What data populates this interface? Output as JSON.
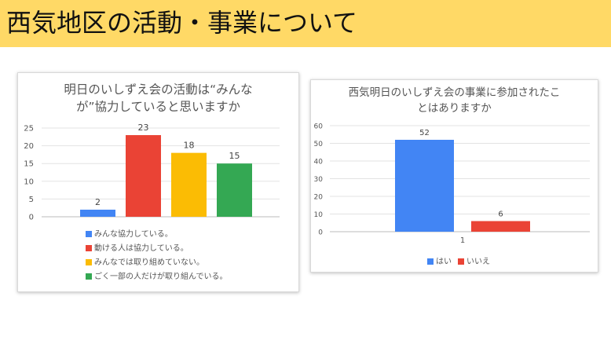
{
  "page": {
    "title": "西気地区の活動・事業について",
    "colors": {
      "banner": "#ffd966"
    }
  },
  "chart_data": [
    {
      "type": "bar",
      "title_line1": "明日のいしずえ会の活動は“みんな",
      "title_line2": "が”協力していると思いますか",
      "categories": [
        "みんな協力している。",
        "動ける人は協力している。",
        "みんなでは取り組めていない。",
        "ごく一部の人だけが取り組んでいる。"
      ],
      "values": [
        2,
        23,
        18,
        15
      ],
      "colors": [
        "#4285f4",
        "#ea4335",
        "#fbbc04",
        "#34a853"
      ],
      "ylim": [
        0,
        25
      ],
      "yticks": [
        "0",
        "5",
        "10",
        "15",
        "20",
        "25"
      ],
      "grid": true,
      "legend": "bottom"
    },
    {
      "type": "bar",
      "title_line1": "西気明日のいしずえ会の事業に参加されたこ",
      "title_line2": "とはありますか",
      "categories": [
        "1"
      ],
      "series": [
        {
          "name": "はい",
          "values": [
            52
          ],
          "color": "#4285f4"
        },
        {
          "name": "いいえ",
          "values": [
            6
          ],
          "color": "#ea4335"
        }
      ],
      "ylim": [
        0,
        60
      ],
      "yticks": [
        "0",
        "10",
        "20",
        "30",
        "40",
        "50",
        "60"
      ],
      "grid": true,
      "legend": "bottom"
    }
  ]
}
